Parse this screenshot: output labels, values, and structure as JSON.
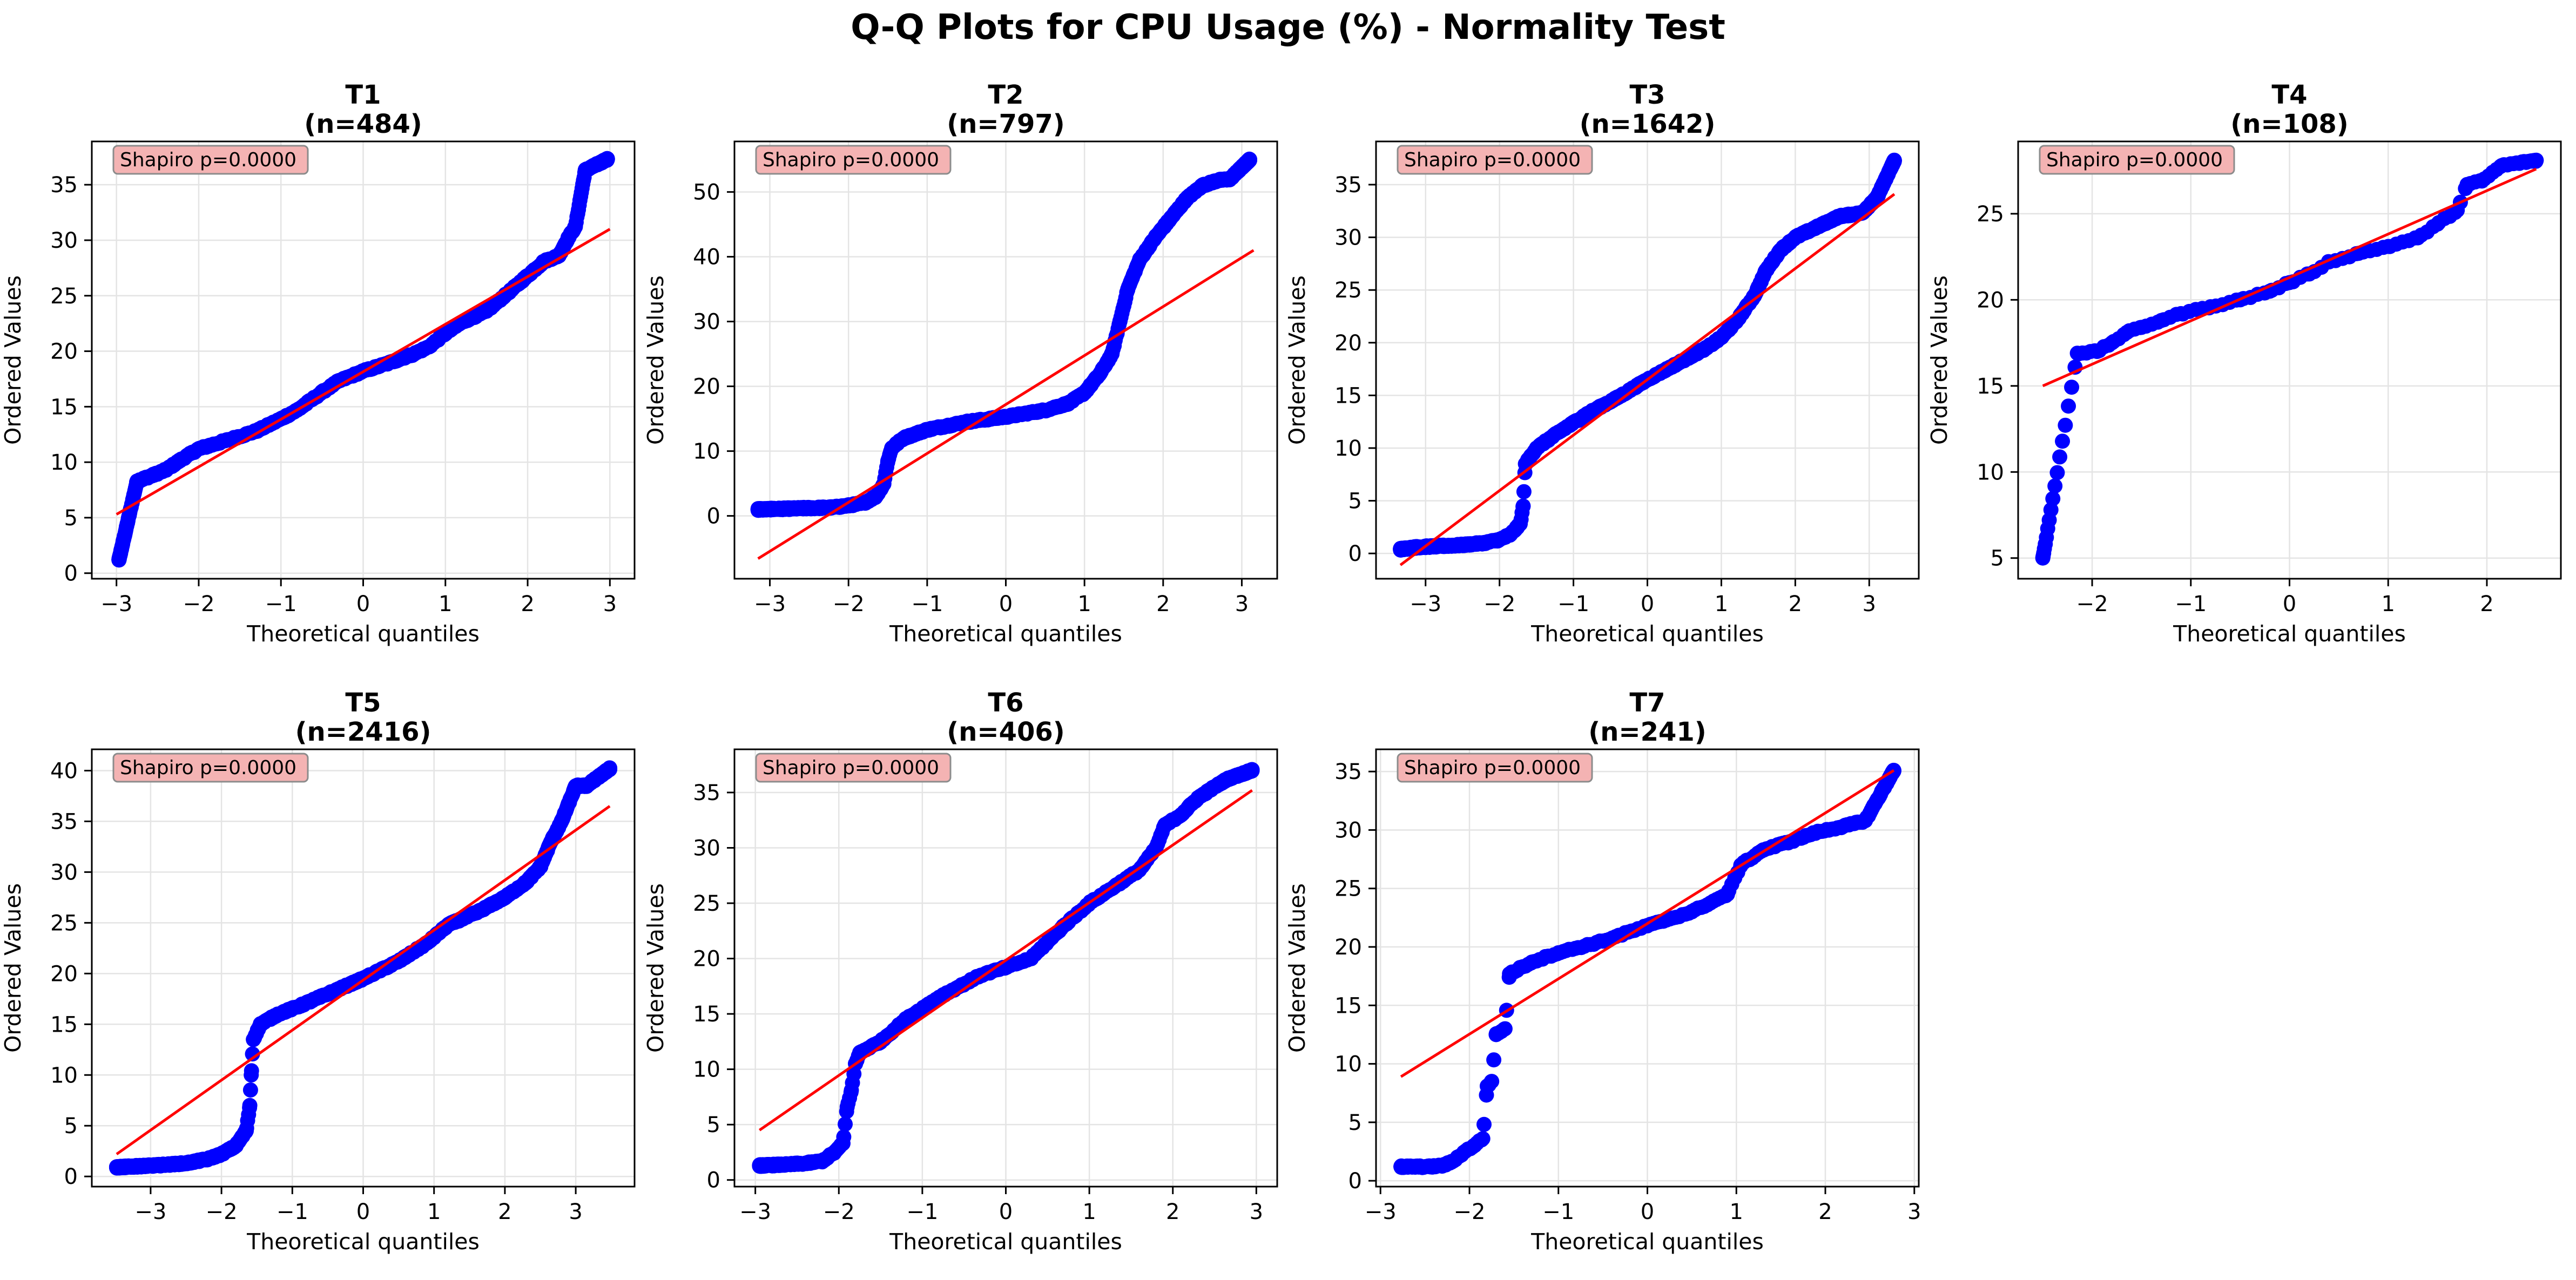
{
  "figure": {
    "title": "Q-Q Plots for CPU Usage (%) - Normality Test"
  },
  "colors": {
    "points": "#0000ff",
    "fit_line": "#ff0000",
    "annotation_bg": "#f4b3b3",
    "annotation_border": "#8c8c8c",
    "grid": "#e4e4e4",
    "axes": "#000000"
  },
  "chart_data": [
    {
      "type": "scatter",
      "title": "T1",
      "subtitle": "(n=484)",
      "xlabel": "Theoretical quantiles",
      "ylabel": "Ordered Values",
      "annotation": "Shapiro p=0.0000",
      "grid": true,
      "xlim": [
        -3.3,
        3.3
      ],
      "ylim": [
        -0.5,
        38.9
      ],
      "xticks": [
        -3,
        -2,
        -1,
        0,
        1,
        2,
        3
      ],
      "yticks": [
        0,
        5,
        10,
        15,
        20,
        25,
        30,
        35
      ],
      "fit_line": [
        [
          -3.0,
          5.3
        ],
        [
          3.0,
          31.0
        ]
      ],
      "series": [
        {
          "shape": [
            [
              -2.97,
              1.2
            ],
            [
              -2.75,
              8.3
            ],
            [
              -2.6,
              8.7
            ],
            [
              -2.4,
              9.3
            ],
            [
              -2.2,
              10.3
            ],
            [
              -2.0,
              11.2
            ],
            [
              -1.6,
              12.1
            ],
            [
              -1.3,
              12.8
            ],
            [
              -1.0,
              13.9
            ],
            [
              -0.8,
              14.7
            ],
            [
              -0.5,
              16.3
            ],
            [
              -0.3,
              17.3
            ],
            [
              0.0,
              18.2
            ],
            [
              0.3,
              18.9
            ],
            [
              0.6,
              19.7
            ],
            [
              0.8,
              20.4
            ],
            [
              1.0,
              21.6
            ],
            [
              1.2,
              22.6
            ],
            [
              1.5,
              23.6
            ],
            [
              1.8,
              25.5
            ],
            [
              2.0,
              26.8
            ],
            [
              2.2,
              28.1
            ],
            [
              2.38,
              28.6
            ],
            [
              2.5,
              30.3
            ],
            [
              2.58,
              31.2
            ],
            [
              2.7,
              36.3
            ],
            [
              2.97,
              37.3
            ]
          ],
          "n": 484
        }
      ]
    },
    {
      "type": "scatter",
      "title": "T2",
      "subtitle": "(n=797)",
      "xlabel": "Theoretical quantiles",
      "ylabel": "Ordered Values",
      "annotation": "Shapiro p=0.0000",
      "grid": true,
      "xlim": [
        -3.45,
        3.45
      ],
      "ylim": [
        -9.7,
        57.8
      ],
      "xticks": [
        -3,
        -2,
        -1,
        0,
        1,
        2,
        3
      ],
      "yticks": [
        0,
        10,
        20,
        30,
        40,
        50
      ],
      "fit_line": [
        [
          -3.15,
          -6.6
        ],
        [
          3.15,
          41.0
        ]
      ],
      "series": [
        {
          "shape": [
            [
              -3.15,
              1.0
            ],
            [
              -2.8,
              1.1
            ],
            [
              -2.5,
              1.2
            ],
            [
              -2.2,
              1.3
            ],
            [
              -2.0,
              1.6
            ],
            [
              -1.8,
              2.0
            ],
            [
              -1.65,
              3.0
            ],
            [
              -1.55,
              5.0
            ],
            [
              -1.5,
              8.5
            ],
            [
              -1.45,
              10.5
            ],
            [
              -1.3,
              12.0
            ],
            [
              -1.0,
              13.3
            ],
            [
              -0.5,
              14.5
            ],
            [
              0.0,
              15.3
            ],
            [
              0.5,
              16.3
            ],
            [
              0.8,
              17.4
            ],
            [
              1.0,
              19.0
            ],
            [
              1.2,
              22.0
            ],
            [
              1.35,
              25.0
            ],
            [
              1.45,
              30.0
            ],
            [
              1.55,
              35.0
            ],
            [
              1.7,
              39.5
            ],
            [
              1.9,
              43.0
            ],
            [
              2.1,
              46.0
            ],
            [
              2.3,
              49.0
            ],
            [
              2.5,
              51.0
            ],
            [
              2.7,
              51.8
            ],
            [
              2.85,
              52.0
            ],
            [
              3.1,
              55.0
            ]
          ],
          "n": 797
        }
      ]
    },
    {
      "type": "scatter",
      "title": "T3",
      "subtitle": "(n=1642)",
      "xlabel": "Theoretical quantiles",
      "ylabel": "Ordered Values",
      "annotation": "Shapiro p=0.0000",
      "grid": true,
      "xlim": [
        -3.67,
        3.67
      ],
      "ylim": [
        -2.4,
        39.1
      ],
      "xticks": [
        -3,
        -2,
        -1,
        0,
        1,
        2,
        3
      ],
      "yticks": [
        0,
        5,
        10,
        15,
        20,
        25,
        30,
        35
      ],
      "fit_line": [
        [
          -3.34,
          -1.1
        ],
        [
          3.34,
          34.1
        ]
      ],
      "series": [
        {
          "shape": [
            [
              -3.34,
              0.4
            ],
            [
              -3.1,
              0.6
            ],
            [
              -2.8,
              0.7
            ],
            [
              -2.5,
              0.8
            ],
            [
              -2.2,
              1.0
            ],
            [
              -2.0,
              1.3
            ],
            [
              -1.85,
              1.8
            ],
            [
              -1.72,
              2.8
            ],
            [
              -1.68,
              4.5
            ],
            [
              -1.65,
              8.5
            ],
            [
              -1.5,
              10.0
            ],
            [
              -1.2,
              11.5
            ],
            [
              -0.8,
              13.3
            ],
            [
              -0.4,
              14.8
            ],
            [
              0.0,
              16.5
            ],
            [
              0.4,
              18.0
            ],
            [
              0.8,
              19.5
            ],
            [
              1.0,
              20.5
            ],
            [
              1.2,
              22.0
            ],
            [
              1.45,
              24.5
            ],
            [
              1.6,
              26.8
            ],
            [
              1.8,
              28.8
            ],
            [
              2.0,
              30.0
            ],
            [
              2.3,
              31.0
            ],
            [
              2.6,
              32.0
            ],
            [
              2.9,
              32.3
            ],
            [
              3.1,
              33.7
            ],
            [
              3.34,
              37.3
            ]
          ],
          "n": 1642
        }
      ]
    },
    {
      "type": "scatter",
      "title": "T4",
      "subtitle": "(n=108)",
      "xlabel": "Theoretical quantiles",
      "ylabel": "Ordered Values",
      "annotation": "Shapiro p=0.0000",
      "grid": true,
      "xlim": [
        -2.75,
        2.75
      ],
      "ylim": [
        3.8,
        29.2
      ],
      "xticks": [
        -2,
        -1,
        0,
        1,
        2
      ],
      "yticks": [
        5,
        10,
        15,
        20,
        25
      ],
      "fit_line": [
        [
          -2.5,
          15.0
        ],
        [
          2.5,
          27.6
        ]
      ],
      "series": [
        {
          "shape": [
            [
              -2.5,
              5.0
            ],
            [
              -2.15,
              16.9
            ],
            [
              -1.95,
              17.0
            ],
            [
              -1.8,
              17.5
            ],
            [
              -1.65,
              18.1
            ],
            [
              -1.5,
              18.4
            ],
            [
              -1.3,
              18.8
            ],
            [
              -1.1,
              19.2
            ],
            [
              -0.8,
              19.6
            ],
            [
              -0.5,
              20.0
            ],
            [
              -0.2,
              20.5
            ],
            [
              0.0,
              21.0
            ],
            [
              0.2,
              21.5
            ],
            [
              0.4,
              22.2
            ],
            [
              0.7,
              22.7
            ],
            [
              1.0,
              23.1
            ],
            [
              1.3,
              23.6
            ],
            [
              1.5,
              24.4
            ],
            [
              1.7,
              25.2
            ],
            [
              1.8,
              26.7
            ],
            [
              1.95,
              26.9
            ],
            [
              2.15,
              27.8
            ],
            [
              2.5,
              28.1
            ]
          ],
          "n": 108
        }
      ]
    },
    {
      "type": "scatter",
      "title": "T5",
      "subtitle": "(n=2416)",
      "xlabel": "Theoretical quantiles",
      "ylabel": "Ordered Values",
      "annotation": "Shapiro p=0.0000",
      "grid": true,
      "xlim": [
        -3.83,
        3.83
      ],
      "ylim": [
        -1.0,
        42.1
      ],
      "xticks": [
        -3,
        -2,
        -1,
        0,
        1,
        2,
        3
      ],
      "yticks": [
        0,
        5,
        10,
        15,
        20,
        25,
        30,
        35,
        40
      ],
      "fit_line": [
        [
          -3.48,
          2.2
        ],
        [
          3.48,
          36.5
        ]
      ],
      "series": [
        {
          "shape": [
            [
              -3.48,
              0.9
            ],
            [
              -3.2,
              1.0
            ],
            [
              -2.9,
              1.1
            ],
            [
              -2.5,
              1.3
            ],
            [
              -2.2,
              1.7
            ],
            [
              -2.0,
              2.2
            ],
            [
              -1.8,
              3.0
            ],
            [
              -1.65,
              4.5
            ],
            [
              -1.6,
              7.0
            ],
            [
              -1.58,
              10.0
            ],
            [
              -1.55,
              13.5
            ],
            [
              -1.45,
              15.0
            ],
            [
              -1.2,
              16.0
            ],
            [
              -0.9,
              16.8
            ],
            [
              -0.5,
              18.0
            ],
            [
              0.0,
              19.5
            ],
            [
              0.5,
              21.2
            ],
            [
              0.9,
              23.0
            ],
            [
              1.2,
              24.8
            ],
            [
              1.6,
              26.0
            ],
            [
              2.0,
              27.5
            ],
            [
              2.3,
              29.0
            ],
            [
              2.5,
              30.5
            ],
            [
              2.65,
              33.0
            ],
            [
              2.8,
              35.0
            ],
            [
              3.0,
              38.5
            ],
            [
              3.15,
              38.5
            ],
            [
              3.48,
              40.2
            ]
          ],
          "n": 2416
        }
      ]
    },
    {
      "type": "scatter",
      "title": "T6",
      "subtitle": "(n=406)",
      "xlabel": "Theoretical quantiles",
      "ylabel": "Ordered Values",
      "annotation": "Shapiro p=0.0000",
      "grid": true,
      "xlim": [
        -3.25,
        3.25
      ],
      "ylim": [
        -0.6,
        38.9
      ],
      "xticks": [
        -3,
        -2,
        -1,
        0,
        1,
        2,
        3
      ],
      "yticks": [
        0,
        5,
        10,
        15,
        20,
        25,
        30,
        35
      ],
      "fit_line": [
        [
          -2.95,
          4.5
        ],
        [
          2.95,
          35.2
        ]
      ],
      "series": [
        {
          "shape": [
            [
              -2.95,
              1.3
            ],
            [
              -2.6,
              1.4
            ],
            [
              -2.4,
              1.5
            ],
            [
              -2.2,
              1.7
            ],
            [
              -2.05,
              2.5
            ],
            [
              -1.95,
              3.3
            ],
            [
              -1.9,
              6.6
            ],
            [
              -1.85,
              8.1
            ],
            [
              -1.8,
              10.5
            ],
            [
              -1.75,
              11.5
            ],
            [
              -1.5,
              12.5
            ],
            [
              -1.2,
              14.5
            ],
            [
              -0.8,
              16.5
            ],
            [
              -0.3,
              18.5
            ],
            [
              0.0,
              19.2
            ],
            [
              0.3,
              20.0
            ],
            [
              0.7,
              23.0
            ],
            [
              1.0,
              25.0
            ],
            [
              1.3,
              26.5
            ],
            [
              1.6,
              28.0
            ],
            [
              1.8,
              30.0
            ],
            [
              1.9,
              32.0
            ],
            [
              2.1,
              33.0
            ],
            [
              2.3,
              34.5
            ],
            [
              2.5,
              35.5
            ],
            [
              2.65,
              36.2
            ],
            [
              2.95,
              37.0
            ]
          ],
          "n": 406
        }
      ]
    },
    {
      "type": "scatter",
      "title": "T7",
      "subtitle": "(n=241)",
      "xlabel": "Theoretical quantiles",
      "ylabel": "Ordered Values",
      "annotation": "Shapiro p=0.0000",
      "grid": true,
      "xlim": [
        -3.05,
        3.05
      ],
      "ylim": [
        -0.5,
        36.9
      ],
      "xticks": [
        -3,
        -2,
        -1,
        0,
        1,
        2,
        3
      ],
      "yticks": [
        0,
        5,
        10,
        15,
        20,
        25,
        30,
        35
      ],
      "fit_line": [
        [
          -2.77,
          8.9
        ],
        [
          2.77,
          35.1
        ]
      ],
      "series": [
        {
          "shape": [
            [
              -2.77,
              1.2
            ],
            [
              -2.45,
              1.2
            ],
            [
              -2.3,
              1.3
            ],
            [
              -2.2,
              1.6
            ],
            [
              -2.05,
              2.5
            ],
            [
              -1.95,
              3.0
            ],
            [
              -1.85,
              3.6
            ],
            [
              -1.8,
              8.1
            ],
            [
              -1.75,
              8.5
            ],
            [
              -1.7,
              12.5
            ],
            [
              -1.6,
              13.0
            ],
            [
              -1.55,
              17.7
            ],
            [
              -1.3,
              18.7
            ],
            [
              -1.0,
              19.5
            ],
            [
              -0.5,
              20.5
            ],
            [
              0.0,
              21.8
            ],
            [
              0.5,
              23.0
            ],
            [
              0.9,
              24.5
            ],
            [
              1.05,
              27.0
            ],
            [
              1.3,
              28.3
            ],
            [
              1.6,
              29.0
            ],
            [
              1.9,
              29.8
            ],
            [
              2.2,
              30.3
            ],
            [
              2.45,
              30.8
            ],
            [
              2.77,
              35.1
            ]
          ],
          "n": 241
        }
      ]
    }
  ]
}
